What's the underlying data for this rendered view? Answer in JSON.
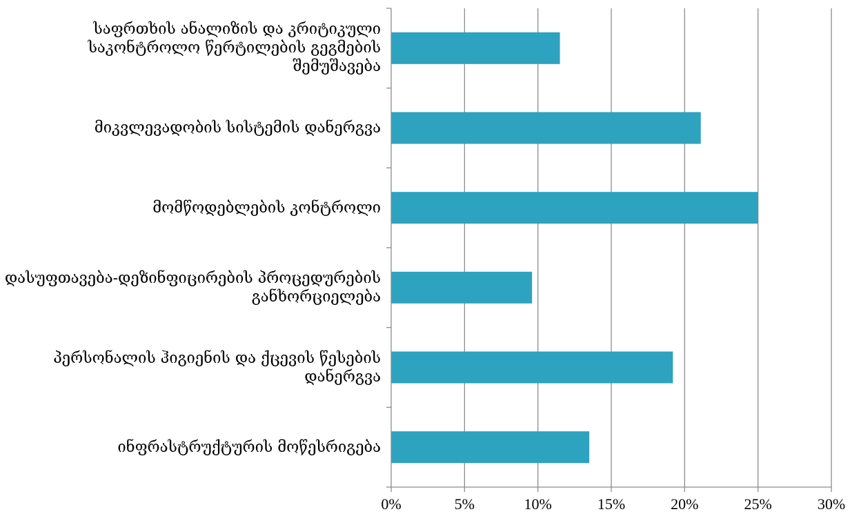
{
  "chart_data": {
    "type": "bar",
    "orientation": "horizontal",
    "categories": [
      "საფრთხის ანალიზის და კრიტიკული საკონტროლო წერტილების გეგმების შემუშავება",
      "მიკვლევადობის სისტემის დანერგვა",
      "მომწოდებლების კონტროლი",
      "დასუფთავება-დეზინფიცირების პროცედურების განხორციელება",
      "პერსონალის ჰიგიენის და ქცევის წესების დანერგვა",
      "ინფრასტრუქტურის მოწესრიგება"
    ],
    "values": [
      11.5,
      21.1,
      25.0,
      9.6,
      19.2,
      13.5
    ],
    "xlim": [
      0,
      30
    ],
    "xticks": [
      0,
      5,
      10,
      15,
      20,
      25,
      30
    ],
    "xtick_labels": [
      "0%",
      "5%",
      "10%",
      "15%",
      "20%",
      "25%",
      "30%"
    ],
    "grid": "vertical",
    "legend": "none",
    "colors": {
      "bar": "#2EA3BF",
      "grid": "#8C8C8C",
      "axis": "#8C8C8C"
    }
  }
}
